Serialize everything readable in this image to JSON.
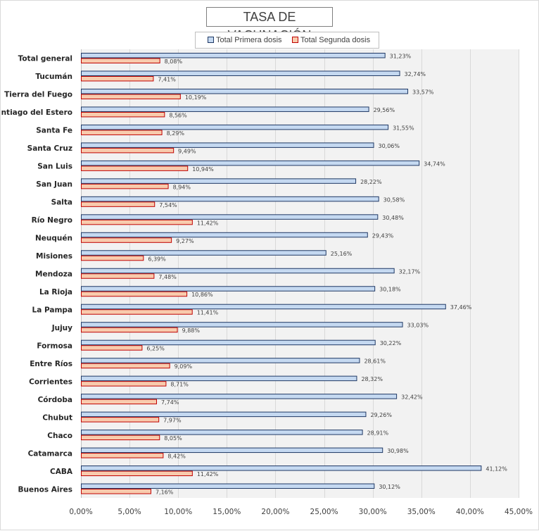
{
  "chart_data": {
    "type": "bar",
    "orientation": "horizontal",
    "title": "TASA DE VACUNACIÓN",
    "categories": [
      "Total general",
      "Tucumán",
      "Tierra del Fuego",
      "Santiago del Estero",
      "Santa Fe",
      "Santa Cruz",
      "San Luis",
      "San Juan",
      "Salta",
      "Río Negro",
      "Neuquén",
      "Misiones",
      "Mendoza",
      "La Rioja",
      "La Pampa",
      "Jujuy",
      "Formosa",
      "Entre Ríos",
      "Corrientes",
      "Córdoba",
      "Chubut",
      "Chaco",
      "Catamarca",
      "CABA",
      "Buenos Aires"
    ],
    "series": [
      {
        "name": "Total Primera dosis",
        "color": "#c5d9f1",
        "border": "#1f3864",
        "values": [
          31.23,
          32.74,
          33.57,
          29.56,
          31.55,
          30.06,
          34.74,
          28.22,
          30.58,
          30.48,
          29.43,
          25.16,
          32.17,
          30.18,
          37.46,
          33.03,
          30.22,
          28.61,
          28.32,
          32.42,
          29.26,
          28.91,
          30.98,
          41.12,
          30.12
        ],
        "labels": [
          "31,23%",
          "32,74%",
          "33,57%",
          "29,56%",
          "31,55%",
          "30,06%",
          "34,74%",
          "28,22%",
          "30,58%",
          "30,48%",
          "29,43%",
          "25,16%",
          "32,17%",
          "30,18%",
          "37,46%",
          "33,03%",
          "30,22%",
          "28,61%",
          "28,32%",
          "32,42%",
          "29,26%",
          "28,91%",
          "30,98%",
          "41,12%",
          "30,12%"
        ]
      },
      {
        "name": "Total Segunda dosis",
        "color": "#f8cbad",
        "border": "#c00000",
        "values": [
          8.08,
          7.41,
          10.19,
          8.56,
          8.29,
          9.49,
          10.94,
          8.94,
          7.54,
          11.42,
          9.27,
          6.39,
          7.48,
          10.86,
          11.41,
          9.88,
          6.25,
          9.09,
          8.71,
          7.74,
          7.97,
          8.05,
          8.42,
          11.42,
          7.16
        ],
        "labels": [
          "8,08%",
          "7,41%",
          "10,19%",
          "8,56%",
          "8,29%",
          "9,49%",
          "10,94%",
          "8,94%",
          "7,54%",
          "11,42%",
          "9,27%",
          "6,39%",
          "7,48%",
          "10,86%",
          "11,41%",
          "9,88%",
          "6,25%",
          "9,09%",
          "8,71%",
          "7,74%",
          "7,97%",
          "8,05%",
          "8,42%",
          "11,42%",
          "7,16%"
        ]
      }
    ],
    "xlim": [
      0,
      45
    ],
    "x_ticks": [
      0,
      5,
      10,
      15,
      20,
      25,
      30,
      35,
      40,
      45
    ],
    "x_tick_labels": [
      "0,00%",
      "5,00%",
      "10,00%",
      "15,00%",
      "20,00%",
      "25,00%",
      "30,00%",
      "35,00%",
      "40,00%",
      "45,00%"
    ],
    "grid": "vertical",
    "legend_position": "top"
  }
}
